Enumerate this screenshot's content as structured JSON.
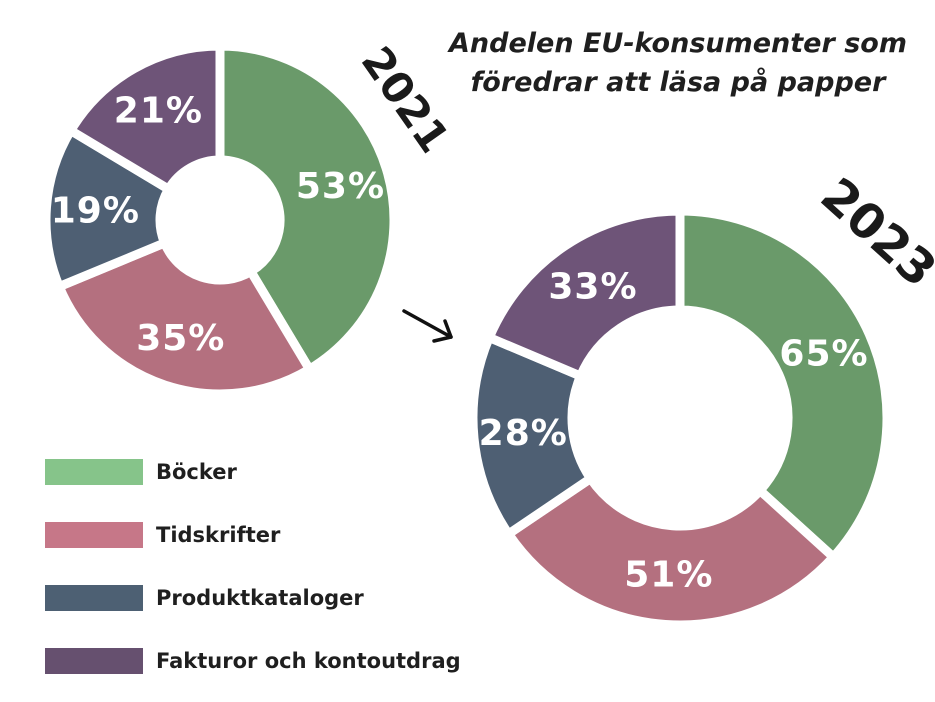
{
  "chart_data": {
    "type": "donut",
    "title_lines": [
      "Andelen EU-konsumenter som",
      "föredrar att läsa på papper"
    ],
    "categories": [
      "Böcker",
      "Tidskrifter",
      "Produktkataloger",
      "Fakturor och kontoutdrag"
    ],
    "colors": [
      "#6a9a6a",
      "#b4707f",
      "#4e5f73",
      "#6e5478"
    ],
    "legend_colors": [
      "#86c48a",
      "#c67788",
      "#4d6073",
      "#66506f"
    ],
    "charts": [
      {
        "year": "2021",
        "values": [
          53,
          35,
          19,
          21
        ],
        "labels": [
          "53%",
          "35%",
          "19%",
          "21%"
        ]
      },
      {
        "year": "2023",
        "values": [
          65,
          51,
          28,
          33
        ],
        "labels": [
          "65%",
          "51%",
          "28%",
          "33%"
        ]
      }
    ],
    "arrow": "→"
  }
}
